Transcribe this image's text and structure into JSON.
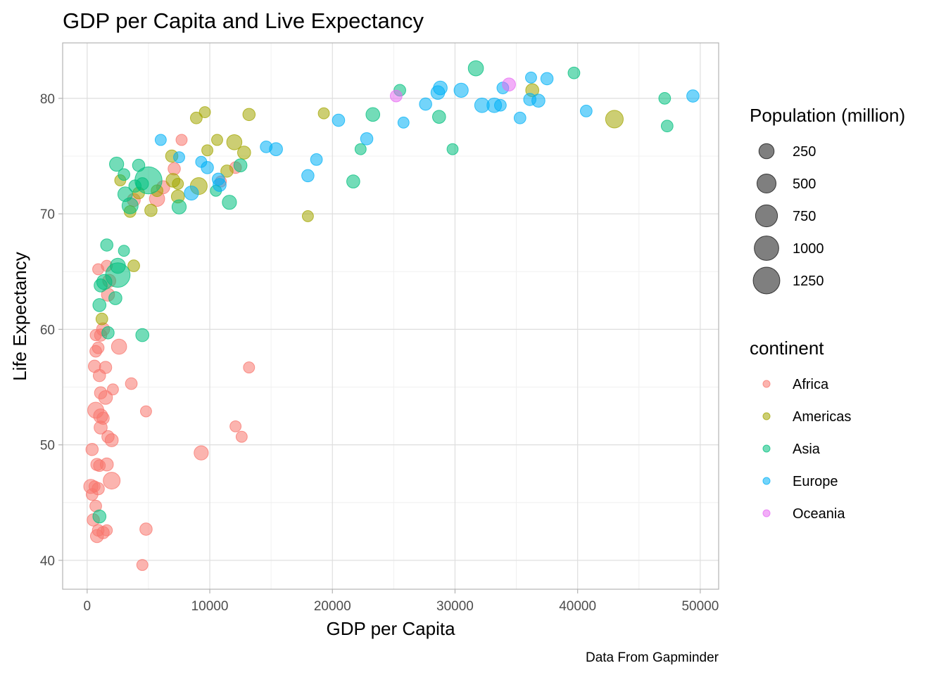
{
  "chart_data": {
    "type": "scatter",
    "title": "GDP per Capita and Live Expectancy",
    "xlabel": "GDP per Capita",
    "ylabel": "Life Expectancy",
    "caption": "Data From Gapminder",
    "xlim": [
      -2000,
      51500
    ],
    "ylim": [
      37.5,
      84.8
    ],
    "xticks": [
      "0",
      "10000",
      "20000",
      "30000",
      "40000",
      "50000"
    ],
    "yticks": [
      "40",
      "50",
      "60",
      "70",
      "80"
    ],
    "grid": true,
    "size_legend": {
      "title": "Population (million)",
      "labels": [
        "250",
        "500",
        "750",
        "1000",
        "1250"
      ]
    },
    "color_legend": {
      "title": "continent",
      "labels": [
        "Africa",
        "Americas",
        "Asia",
        "Europe",
        "Oceania"
      ]
    },
    "colors": {
      "Africa": "#F8766D",
      "Americas": "#A3A500",
      "Asia": "#00BF7D",
      "Europe": "#00B0F6",
      "Oceania": "#E76BF3"
    },
    "series": [
      {
        "name": "Africa",
        "points": [
          [
            1300,
            60,
            15
          ],
          [
            1600,
            65.5,
            8
          ],
          [
            900,
            65.2,
            8
          ],
          [
            700,
            59.5,
            8
          ],
          [
            1100,
            59.5,
            12
          ],
          [
            900,
            58.4,
            10
          ],
          [
            700,
            58.1,
            10
          ],
          [
            2600,
            58.5,
            25
          ],
          [
            1700,
            63.0,
            15
          ],
          [
            1800,
            64.2,
            15
          ],
          [
            600,
            56.8,
            12
          ],
          [
            1500,
            56.7,
            12
          ],
          [
            1000,
            56.0,
            12
          ],
          [
            2100,
            54.8,
            8
          ],
          [
            3600,
            55.3,
            10
          ],
          [
            1100,
            54.5,
            12
          ],
          [
            1500,
            54.1,
            18
          ],
          [
            700,
            53.0,
            30
          ],
          [
            1100,
            52.5,
            20
          ],
          [
            1300,
            52.3,
            12
          ],
          [
            4800,
            52.9,
            8
          ],
          [
            1100,
            51.5,
            15
          ],
          [
            1700,
            50.7,
            12
          ],
          [
            2000,
            50.4,
            15
          ],
          [
            400,
            49.6,
            12
          ],
          [
            9300,
            49.3,
            20
          ],
          [
            800,
            48.3,
            12
          ],
          [
            1000,
            48.2,
            10
          ],
          [
            1600,
            48.3,
            15
          ],
          [
            2000,
            46.9,
            35
          ],
          [
            300,
            46.4,
            20
          ],
          [
            900,
            46.2,
            12
          ],
          [
            600,
            46.4,
            8
          ],
          [
            400,
            45.7,
            10
          ],
          [
            700,
            44.7,
            10
          ],
          [
            500,
            43.5,
            12
          ],
          [
            900,
            42.6,
            10
          ],
          [
            1300,
            42.4,
            12
          ],
          [
            1600,
            42.6,
            8
          ],
          [
            800,
            42.1,
            15
          ],
          [
            4800,
            42.7,
            12
          ],
          [
            4500,
            39.6,
            8
          ],
          [
            13200,
            56.7,
            8
          ],
          [
            12100,
            51.6,
            8
          ],
          [
            12600,
            50.7,
            8
          ],
          [
            3800,
            71.2,
            15
          ],
          [
            5700,
            71.3,
            25
          ],
          [
            6200,
            72.3,
            15
          ],
          [
            7100,
            73.9,
            12
          ],
          [
            7700,
            76.4,
            8
          ],
          [
            12100,
            74.0,
            10
          ],
          [
            10900,
            72.8,
            8
          ]
        ]
      },
      {
        "name": "Americas",
        "points": [
          [
            3800,
            65.5,
            10
          ],
          [
            1200,
            60.9,
            10
          ],
          [
            2700,
            72.9,
            8
          ],
          [
            4200,
            71.8,
            10
          ],
          [
            5200,
            70.3,
            12
          ],
          [
            3500,
            70.2,
            10
          ],
          [
            5700,
            72.0,
            10
          ],
          [
            6900,
            75.0,
            12
          ],
          [
            7000,
            72.9,
            18
          ],
          [
            7400,
            71.5,
            15
          ],
          [
            7400,
            72.6,
            8
          ],
          [
            8900,
            78.3,
            10
          ],
          [
            9600,
            78.8,
            8
          ],
          [
            9800,
            75.5,
            8
          ],
          [
            9100,
            72.4,
            35
          ],
          [
            10600,
            76.4,
            8
          ],
          [
            11400,
            73.7,
            12
          ],
          [
            12000,
            76.2,
            25
          ],
          [
            12800,
            75.3,
            15
          ],
          [
            13200,
            78.6,
            12
          ],
          [
            18000,
            69.8,
            8
          ],
          [
            19300,
            78.7,
            8
          ],
          [
            36300,
            80.7,
            15
          ],
          [
            43000,
            78.2,
            40
          ]
        ]
      },
      {
        "name": "Asia",
        "points": [
          [
            2500,
            64.7,
            100
          ],
          [
            5000,
            72.9,
            130
          ],
          [
            2500,
            65.5,
            25
          ],
          [
            1400,
            64.1,
            25
          ],
          [
            1100,
            63.8,
            15
          ],
          [
            1000,
            62.1,
            15
          ],
          [
            1600,
            67.3,
            12
          ],
          [
            3000,
            66.8,
            8
          ],
          [
            1700,
            59.7,
            12
          ],
          [
            2300,
            62.7,
            15
          ],
          [
            4500,
            59.5,
            15
          ],
          [
            1000,
            43.8,
            15
          ],
          [
            2400,
            74.3,
            20
          ],
          [
            3000,
            73.4,
            10
          ],
          [
            3100,
            71.7,
            22
          ],
          [
            3500,
            70.7,
            30
          ],
          [
            3900,
            72.4,
            12
          ],
          [
            4200,
            74.2,
            12
          ],
          [
            4500,
            72.6,
            12
          ],
          [
            7500,
            70.6,
            20
          ],
          [
            10500,
            72.0,
            8
          ],
          [
            11600,
            71.0,
            20
          ],
          [
            12500,
            74.2,
            15
          ],
          [
            21700,
            72.8,
            15
          ],
          [
            22300,
            75.6,
            8
          ],
          [
            23300,
            78.6,
            18
          ],
          [
            25500,
            80.7,
            10
          ],
          [
            28700,
            78.4,
            15
          ],
          [
            29800,
            75.6,
            8
          ],
          [
            31700,
            82.6,
            25
          ],
          [
            39700,
            82.2,
            10
          ],
          [
            47100,
            80.0,
            10
          ],
          [
            47300,
            77.6,
            10
          ]
        ]
      },
      {
        "name": "Europe",
        "points": [
          [
            6000,
            76.4,
            8
          ],
          [
            7500,
            74.9,
            8
          ],
          [
            9300,
            74.5,
            8
          ],
          [
            9800,
            74.0,
            12
          ],
          [
            8500,
            71.8,
            20
          ],
          [
            10700,
            73.0,
            12
          ],
          [
            10800,
            72.5,
            15
          ],
          [
            14600,
            75.8,
            10
          ],
          [
            15400,
            75.6,
            15
          ],
          [
            18000,
            73.3,
            12
          ],
          [
            18700,
            74.7,
            10
          ],
          [
            20500,
            78.1,
            12
          ],
          [
            22800,
            76.5,
            12
          ],
          [
            25800,
            77.9,
            8
          ],
          [
            27600,
            79.5,
            12
          ],
          [
            28600,
            80.5,
            18
          ],
          [
            28800,
            80.9,
            18
          ],
          [
            30500,
            80.7,
            20
          ],
          [
            32200,
            79.4,
            22
          ],
          [
            33200,
            79.4,
            22
          ],
          [
            33700,
            79.4,
            10
          ],
          [
            33900,
            80.9,
            10
          ],
          [
            35300,
            78.3,
            10
          ],
          [
            36100,
            79.9,
            12
          ],
          [
            36200,
            81.8,
            8
          ],
          [
            36800,
            79.8,
            15
          ],
          [
            37500,
            81.7,
            12
          ],
          [
            40700,
            78.9,
            10
          ],
          [
            49400,
            80.2,
            12
          ]
        ]
      },
      {
        "name": "Oceania",
        "points": [
          [
            25200,
            80.2,
            10
          ],
          [
            34400,
            81.2,
            15
          ]
        ]
      }
    ]
  }
}
